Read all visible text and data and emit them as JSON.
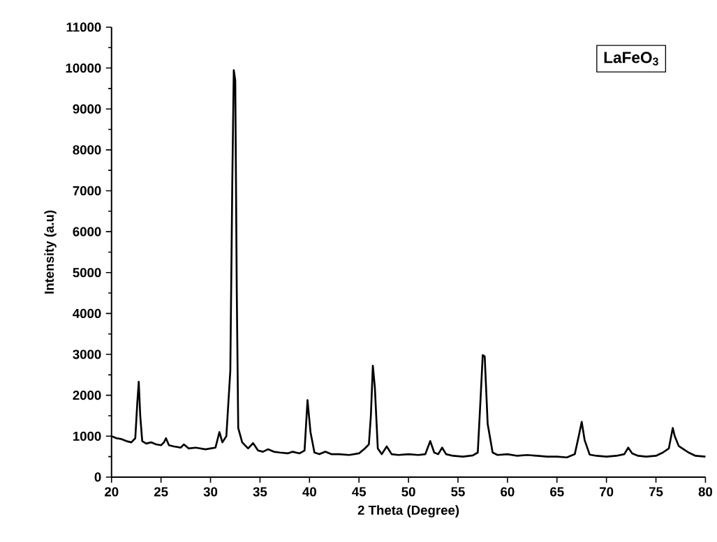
{
  "chart_data": {
    "type": "line",
    "xlabel": "2 Theta (Degree)",
    "ylabel": "Intensity (a.u)",
    "annotations": [
      "LaFeO$_{3}$"
    ],
    "xlim": [
      20,
      80
    ],
    "xticks": [
      20,
      25,
      30,
      35,
      40,
      45,
      50,
      55,
      60,
      65,
      70,
      75,
      80
    ],
    "ylim": [
      0,
      11000
    ],
    "yticks": [
      0,
      1000,
      2000,
      3000,
      4000,
      5000,
      6000,
      7000,
      8000,
      9000,
      10000,
      11000
    ],
    "grid": false,
    "marker": "none",
    "line_style": "solid",
    "series": [
      {
        "color": "#000000",
        "x": [
          20,
          20.5,
          21,
          21.5,
          22,
          22.4,
          22.6,
          22.75,
          22.9,
          23.1,
          23.5,
          24,
          24.5,
          25,
          25.3,
          25.5,
          25.8,
          26.3,
          27,
          27.3,
          27.8,
          28.5,
          29,
          29.5,
          30,
          30.5,
          30.9,
          31.2,
          31.6,
          32.0,
          32.2,
          32.35,
          32.5,
          32.65,
          32.8,
          33.2,
          33.8,
          34.3,
          34.8,
          35.3,
          35.8,
          36.4,
          37,
          37.8,
          38.3,
          39,
          39.5,
          39.8,
          40.1,
          40.5,
          41,
          41.6,
          42.2,
          43,
          44,
          45,
          45.6,
          46.0,
          46.2,
          46.4,
          46.6,
          46.9,
          47.3,
          47.8,
          48.3,
          49,
          50,
          51,
          51.7,
          52.2,
          52.6,
          53,
          53.4,
          53.8,
          54.5,
          55.5,
          56.5,
          57.0,
          57.3,
          57.5,
          57.7,
          58.0,
          58.5,
          59,
          60,
          61,
          62,
          63,
          64,
          65,
          66,
          66.8,
          67.2,
          67.5,
          67.8,
          68.3,
          69,
          70,
          71,
          71.8,
          72.2,
          72.6,
          73.2,
          74,
          75,
          75.7,
          76.3,
          76.7,
          76.9,
          77.3,
          77.8,
          78.3,
          79,
          80
        ],
        "values": [
          1000,
          950,
          930,
          880,
          850,
          950,
          1800,
          2330,
          1500,
          880,
          820,
          850,
          800,
          780,
          850,
          950,
          780,
          750,
          720,
          800,
          700,
          720,
          700,
          680,
          700,
          720,
          1100,
          850,
          1000,
          2600,
          7200,
          9950,
          9700,
          4600,
          1200,
          850,
          700,
          830,
          650,
          620,
          680,
          620,
          600,
          580,
          620,
          580,
          650,
          1880,
          1100,
          600,
          560,
          620,
          560,
          560,
          540,
          580,
          700,
          800,
          1500,
          2720,
          2200,
          700,
          560,
          750,
          560,
          540,
          560,
          540,
          560,
          880,
          600,
          560,
          720,
          560,
          520,
          500,
          530,
          600,
          2000,
          2980,
          2950,
          1300,
          600,
          540,
          560,
          520,
          540,
          520,
          500,
          500,
          480,
          560,
          1000,
          1350,
          900,
          550,
          520,
          500,
          520,
          560,
          720,
          580,
          520,
          500,
          520,
          600,
          700,
          1200,
          1000,
          760,
          680,
          600,
          520,
          500
        ]
      }
    ]
  }
}
